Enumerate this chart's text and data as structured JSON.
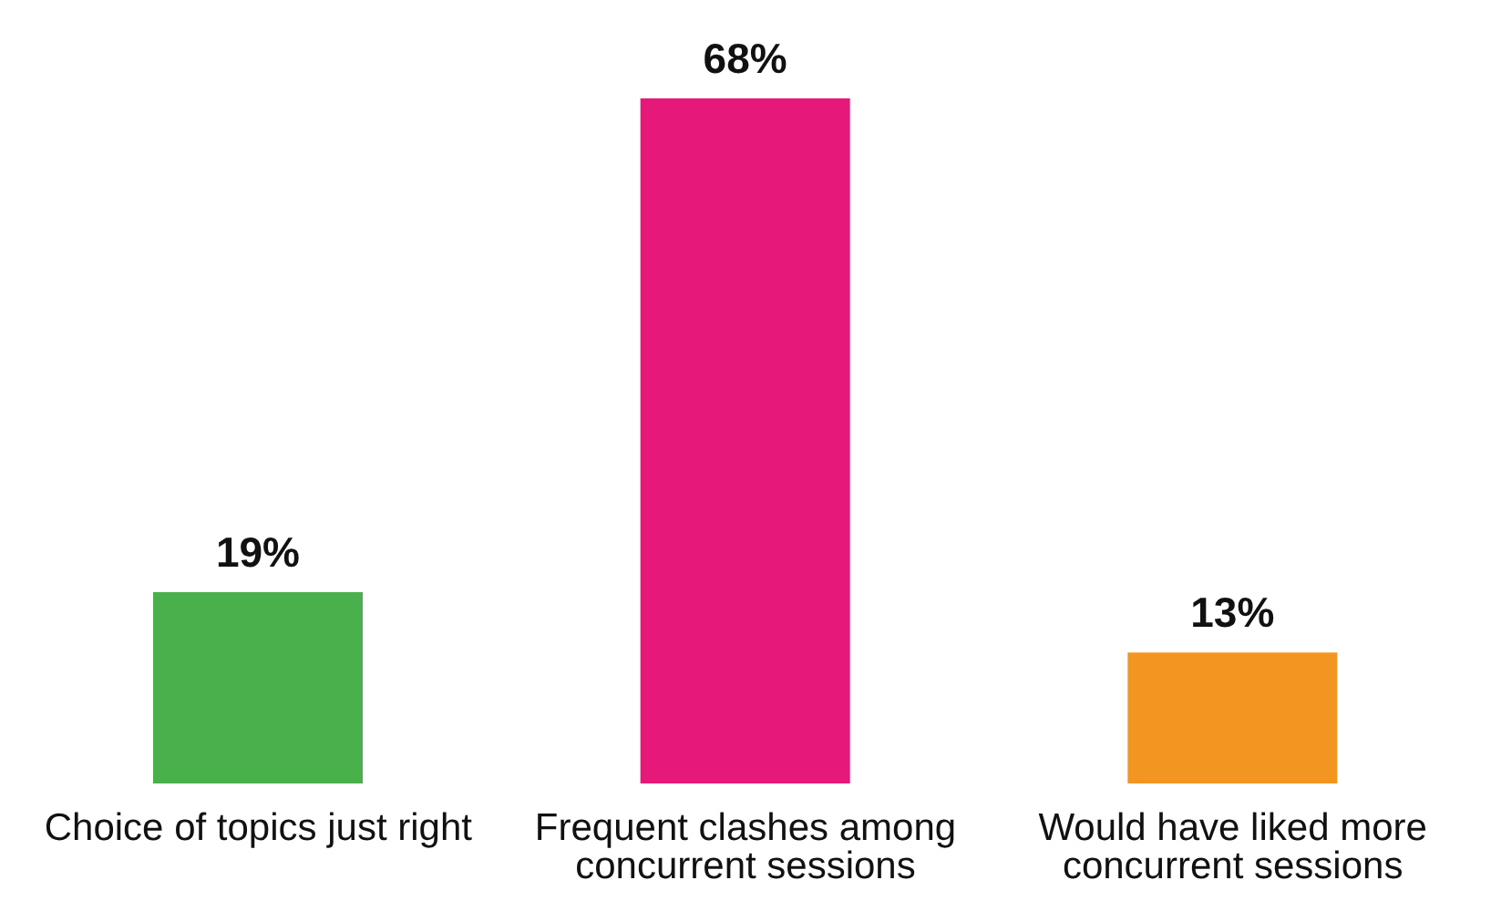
{
  "chart_data": {
    "type": "bar",
    "categories": [
      "Choice of topics just right",
      "Frequent clashes among concurrent sessions",
      "Would have liked more concurrent sessions"
    ],
    "values": [
      19,
      68,
      13
    ],
    "colors": [
      "#4ab04c",
      "#e6197a",
      "#f29621"
    ],
    "value_labels": [
      "19%",
      "68%",
      "13%"
    ]
  }
}
